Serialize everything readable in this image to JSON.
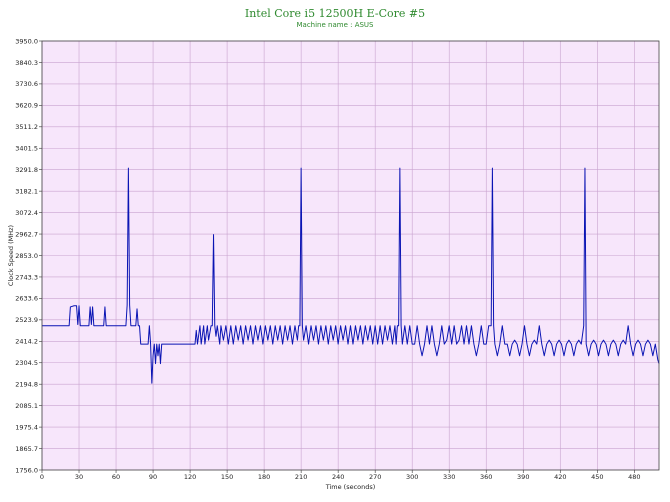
{
  "chart_data": {
    "type": "line",
    "title": "Intel Core i5 12500H E-Core #5",
    "subtitle": "Machine name : ASUS",
    "xlabel": "Time (seconds)",
    "ylabel": "Clock Speed (MHz)",
    "xlim": [
      0,
      500
    ],
    "ylim": [
      1756.0,
      3950.0
    ],
    "x_ticks": [
      0,
      30,
      60,
      90,
      120,
      150,
      180,
      210,
      240,
      270,
      300,
      330,
      360,
      390,
      420,
      450,
      480
    ],
    "y_ticks": [
      1756.0,
      1865.7,
      1975.4,
      2085.1,
      2194.8,
      2304.5,
      2414.2,
      2523.9,
      2633.6,
      2743.3,
      2853.0,
      2962.7,
      3072.4,
      3182.1,
      3291.8,
      3401.5,
      3511.2,
      3620.9,
      3730.6,
      3840.3,
      3950.0
    ],
    "grid": true,
    "colors": {
      "line": "#0a14b4",
      "plot_bg": "#f7e6fb",
      "grid": "#c9a3cf",
      "title": "#2f8a2f"
    },
    "series": [
      {
        "points": [
          [
            0,
            2494
          ],
          [
            22,
            2494
          ],
          [
            23,
            2590
          ],
          [
            26,
            2596
          ],
          [
            28,
            2596
          ],
          [
            29,
            2500
          ],
          [
            30,
            2596
          ],
          [
            31,
            2494
          ],
          [
            38,
            2494
          ],
          [
            39,
            2590
          ],
          [
            40,
            2500
          ],
          [
            41,
            2590
          ],
          [
            42,
            2494
          ],
          [
            50,
            2494
          ],
          [
            51,
            2590
          ],
          [
            52,
            2494
          ],
          [
            68,
            2494
          ],
          [
            69,
            2600
          ],
          [
            70,
            3300
          ],
          [
            71,
            2600
          ],
          [
            72,
            2494
          ],
          [
            76,
            2494
          ],
          [
            77,
            2580
          ],
          [
            78,
            2494
          ],
          [
            79,
            2494
          ],
          [
            80,
            2400
          ],
          [
            86,
            2400
          ],
          [
            87,
            2494
          ],
          [
            88,
            2400
          ],
          [
            89,
            2200
          ],
          [
            90,
            2340
          ],
          [
            91,
            2400
          ],
          [
            92,
            2300
          ],
          [
            93,
            2400
          ],
          [
            94,
            2340
          ],
          [
            95,
            2400
          ],
          [
            96,
            2300
          ],
          [
            97,
            2400
          ],
          [
            110,
            2400
          ],
          [
            115,
            2400
          ],
          [
            120,
            2400
          ],
          [
            124,
            2400
          ],
          [
            125,
            2470
          ],
          [
            126,
            2400
          ],
          [
            128,
            2494
          ],
          [
            129,
            2400
          ],
          [
            131,
            2494
          ],
          [
            132,
            2400
          ],
          [
            134,
            2494
          ],
          [
            135,
            2420
          ],
          [
            137,
            2494
          ],
          [
            138,
            2494
          ],
          [
            139,
            2960
          ],
          [
            140,
            2494
          ],
          [
            141,
            2440
          ],
          [
            142,
            2494
          ],
          [
            144,
            2400
          ],
          [
            145,
            2494
          ],
          [
            147,
            2420
          ],
          [
            149,
            2494
          ],
          [
            151,
            2400
          ],
          [
            153,
            2494
          ],
          [
            155,
            2400
          ],
          [
            157,
            2494
          ],
          [
            159,
            2420
          ],
          [
            161,
            2494
          ],
          [
            163,
            2400
          ],
          [
            165,
            2494
          ],
          [
            167,
            2420
          ],
          [
            169,
            2494
          ],
          [
            171,
            2400
          ],
          [
            173,
            2494
          ],
          [
            175,
            2420
          ],
          [
            177,
            2494
          ],
          [
            179,
            2400
          ],
          [
            181,
            2494
          ],
          [
            183,
            2420
          ],
          [
            185,
            2494
          ],
          [
            187,
            2400
          ],
          [
            189,
            2494
          ],
          [
            191,
            2420
          ],
          [
            193,
            2494
          ],
          [
            195,
            2400
          ],
          [
            197,
            2494
          ],
          [
            199,
            2420
          ],
          [
            201,
            2494
          ],
          [
            203,
            2400
          ],
          [
            205,
            2494
          ],
          [
            207,
            2420
          ],
          [
            208,
            2494
          ],
          [
            209,
            2494
          ],
          [
            210,
            3300
          ],
          [
            211,
            2494
          ],
          [
            212,
            2420
          ],
          [
            214,
            2494
          ],
          [
            216,
            2400
          ],
          [
            218,
            2494
          ],
          [
            220,
            2420
          ],
          [
            222,
            2494
          ],
          [
            224,
            2400
          ],
          [
            226,
            2494
          ],
          [
            228,
            2420
          ],
          [
            230,
            2494
          ],
          [
            232,
            2400
          ],
          [
            234,
            2494
          ],
          [
            236,
            2420
          ],
          [
            238,
            2494
          ],
          [
            240,
            2400
          ],
          [
            242,
            2494
          ],
          [
            244,
            2420
          ],
          [
            246,
            2494
          ],
          [
            248,
            2400
          ],
          [
            250,
            2494
          ],
          [
            252,
            2400
          ],
          [
            254,
            2494
          ],
          [
            256,
            2420
          ],
          [
            258,
            2494
          ],
          [
            260,
            2400
          ],
          [
            262,
            2494
          ],
          [
            264,
            2420
          ],
          [
            266,
            2494
          ],
          [
            268,
            2400
          ],
          [
            270,
            2494
          ],
          [
            272,
            2400
          ],
          [
            274,
            2494
          ],
          [
            276,
            2400
          ],
          [
            278,
            2494
          ],
          [
            280,
            2420
          ],
          [
            282,
            2494
          ],
          [
            284,
            2400
          ],
          [
            286,
            2494
          ],
          [
            287,
            2400
          ],
          [
            288,
            2494
          ],
          [
            289,
            2494
          ],
          [
            290,
            3300
          ],
          [
            291,
            2494
          ],
          [
            292,
            2400
          ],
          [
            294,
            2494
          ],
          [
            296,
            2400
          ],
          [
            298,
            2494
          ],
          [
            300,
            2400
          ],
          [
            302,
            2400
          ],
          [
            304,
            2494
          ],
          [
            306,
            2400
          ],
          [
            308,
            2340
          ],
          [
            310,
            2400
          ],
          [
            312,
            2494
          ],
          [
            314,
            2400
          ],
          [
            316,
            2494
          ],
          [
            318,
            2400
          ],
          [
            320,
            2340
          ],
          [
            322,
            2400
          ],
          [
            324,
            2494
          ],
          [
            326,
            2400
          ],
          [
            328,
            2420
          ],
          [
            330,
            2494
          ],
          [
            332,
            2400
          ],
          [
            334,
            2494
          ],
          [
            336,
            2400
          ],
          [
            338,
            2420
          ],
          [
            340,
            2494
          ],
          [
            342,
            2400
          ],
          [
            344,
            2494
          ],
          [
            346,
            2400
          ],
          [
            348,
            2494
          ],
          [
            350,
            2400
          ],
          [
            352,
            2340
          ],
          [
            354,
            2400
          ],
          [
            356,
            2494
          ],
          [
            358,
            2400
          ],
          [
            360,
            2400
          ],
          [
            362,
            2494
          ],
          [
            364,
            2494
          ],
          [
            365,
            3300
          ],
          [
            366,
            2494
          ],
          [
            367,
            2400
          ],
          [
            369,
            2340
          ],
          [
            371,
            2400
          ],
          [
            373,
            2494
          ],
          [
            375,
            2400
          ],
          [
            377,
            2400
          ],
          [
            379,
            2340
          ],
          [
            381,
            2400
          ],
          [
            383,
            2420
          ],
          [
            385,
            2400
          ],
          [
            387,
            2340
          ],
          [
            389,
            2400
          ],
          [
            391,
            2494
          ],
          [
            393,
            2400
          ],
          [
            395,
            2340
          ],
          [
            397,
            2400
          ],
          [
            399,
            2420
          ],
          [
            401,
            2400
          ],
          [
            403,
            2494
          ],
          [
            405,
            2400
          ],
          [
            407,
            2340
          ],
          [
            409,
            2400
          ],
          [
            411,
            2420
          ],
          [
            413,
            2400
          ],
          [
            415,
            2340
          ],
          [
            417,
            2400
          ],
          [
            419,
            2420
          ],
          [
            421,
            2400
          ],
          [
            423,
            2340
          ],
          [
            425,
            2400
          ],
          [
            427,
            2420
          ],
          [
            429,
            2400
          ],
          [
            431,
            2340
          ],
          [
            433,
            2400
          ],
          [
            435,
            2420
          ],
          [
            437,
            2400
          ],
          [
            439,
            2494
          ],
          [
            440,
            3300
          ],
          [
            441,
            2400
          ],
          [
            443,
            2340
          ],
          [
            445,
            2400
          ],
          [
            447,
            2420
          ],
          [
            449,
            2400
          ],
          [
            451,
            2340
          ],
          [
            453,
            2400
          ],
          [
            455,
            2420
          ],
          [
            457,
            2400
          ],
          [
            459,
            2340
          ],
          [
            461,
            2400
          ],
          [
            463,
            2420
          ],
          [
            465,
            2400
          ],
          [
            467,
            2340
          ],
          [
            469,
            2400
          ],
          [
            471,
            2420
          ],
          [
            473,
            2400
          ],
          [
            475,
            2494
          ],
          [
            477,
            2400
          ],
          [
            479,
            2340
          ],
          [
            481,
            2400
          ],
          [
            483,
            2420
          ],
          [
            485,
            2400
          ],
          [
            487,
            2340
          ],
          [
            489,
            2400
          ],
          [
            491,
            2420
          ],
          [
            493,
            2400
          ],
          [
            495,
            2340
          ],
          [
            497,
            2400
          ],
          [
            499,
            2320
          ],
          [
            500,
            2300
          ]
        ]
      }
    ]
  }
}
